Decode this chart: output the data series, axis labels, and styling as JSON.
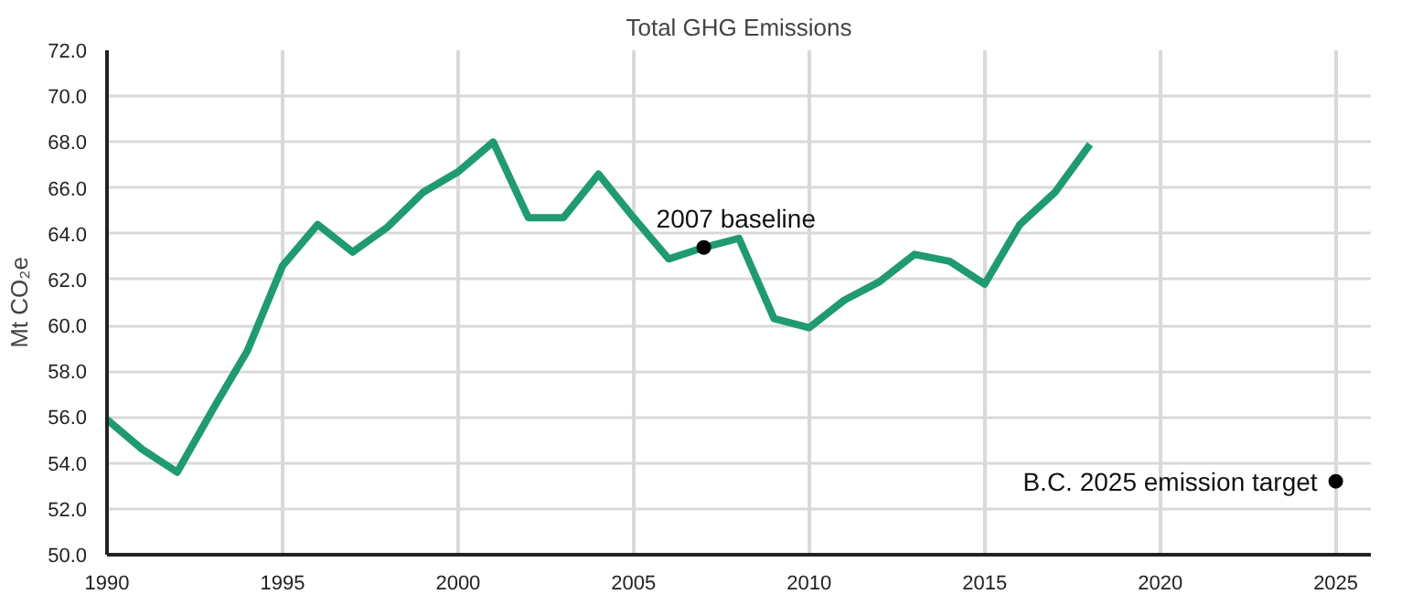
{
  "chart_data": {
    "type": "line",
    "title": "Total GHG Emissions",
    "ylabel": "Mt CO₂e",
    "x": [
      1990,
      1991,
      1992,
      1993,
      1994,
      1995,
      1996,
      1997,
      1998,
      1999,
      2000,
      2001,
      2002,
      2003,
      2004,
      2005,
      2006,
      2007,
      2008,
      2009,
      2010,
      2011,
      2012,
      2013,
      2014,
      2015,
      2016,
      2017,
      2018
    ],
    "series": [
      {
        "color": "#1f9a72",
        "values": [
          55.9,
          54.6,
          53.6,
          56.3,
          58.9,
          62.6,
          64.4,
          63.2,
          64.3,
          65.8,
          66.7,
          68.0,
          64.7,
          64.7,
          66.6,
          64.7,
          62.9,
          63.4,
          63.8,
          60.3,
          59.9,
          61.1,
          61.9,
          63.1,
          62.8,
          61.8,
          64.4,
          65.8,
          67.9
        ]
      },
      {
        "type": "scatter",
        "marker": "circle",
        "color": "#000000",
        "x": [
          2007,
          2025
        ],
        "values": [
          63.4,
          53.2
        ]
      }
    ],
    "annotations": [
      {
        "text": "2007 baseline",
        "x": 2007,
        "y": 63.4
      },
      {
        "text": "B.C. 2025 emission target",
        "x": 2025,
        "y": 53.2
      }
    ],
    "xlim": [
      1990,
      2026
    ],
    "ylim": [
      50,
      72
    ],
    "xticks": [
      1990,
      1995,
      2000,
      2005,
      2010,
      2015,
      2020,
      2025
    ],
    "yticks": [
      {
        "value": 50,
        "label": "50.0"
      },
      {
        "value": 52,
        "label": "52.0"
      },
      {
        "value": 54,
        "label": "54.0"
      },
      {
        "value": 56,
        "label": "56.0"
      },
      {
        "value": 58,
        "label": "58.0"
      },
      {
        "value": 60,
        "label": "60.0"
      },
      {
        "value": 62,
        "label": "62.0"
      },
      {
        "value": 64,
        "label": "64.0"
      },
      {
        "value": 66,
        "label": "66.0"
      },
      {
        "value": 68,
        "label": "68.0"
      },
      {
        "value": 70,
        "label": "70.0"
      },
      {
        "value": 72,
        "label": "72.0"
      }
    ],
    "grid": true,
    "marker": "none",
    "line_style": "solid"
  }
}
